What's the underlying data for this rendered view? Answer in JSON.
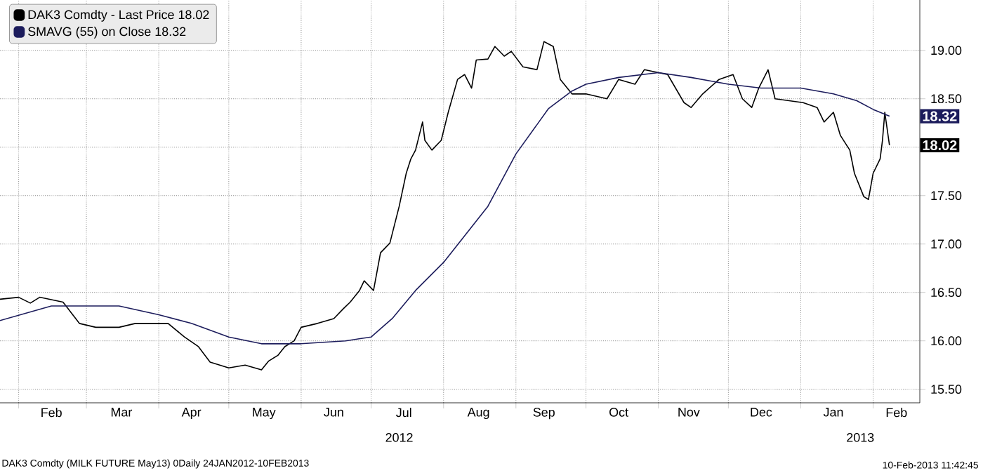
{
  "chart_data": {
    "type": "line",
    "legend": "top left",
    "grid": true,
    "xlim": [
      "2012-01-24",
      "2013-02-21"
    ],
    "ylim": [
      15.36,
      19.52
    ],
    "yticks": [
      {
        "value": 15.5,
        "label": "15.50"
      },
      {
        "value": 16,
        "label": "16.00"
      },
      {
        "value": 16.5,
        "label": "16.50"
      },
      {
        "value": 17,
        "label": "17.00"
      },
      {
        "value": 17.5,
        "label": "17.50"
      },
      {
        "value": 18,
        "label": null
      },
      {
        "value": 18.5,
        "label": "18.50"
      },
      {
        "value": 19,
        "label": "19.00"
      }
    ],
    "xticks": [
      {
        "value": "2012-02-01",
        "label": null
      },
      {
        "value": "2012-03-01",
        "label": null
      },
      {
        "value": "2012-04-01",
        "label": null
      },
      {
        "value": "2012-05-01",
        "label": null
      },
      {
        "value": "2012-06-01",
        "label": null
      },
      {
        "value": "2012-07-01",
        "label": null
      },
      {
        "value": "2012-08-01",
        "label": null
      },
      {
        "value": "2012-09-01",
        "label": null
      },
      {
        "value": "2012-10-01",
        "label": null
      },
      {
        "value": "2012-11-01",
        "label": null
      },
      {
        "value": "2012-12-01",
        "label": null
      },
      {
        "value": "2013-01-01",
        "label": null
      },
      {
        "value": "2013-02-01",
        "label": null
      },
      {
        "value": "2012-02-15",
        "label": "Feb"
      },
      {
        "value": "2012-03-16",
        "label": "Mar"
      },
      {
        "value": "2012-04-15",
        "label": "Apr"
      },
      {
        "value": "2012-05-16",
        "label": "May"
      },
      {
        "value": "2012-06-15",
        "label": "Jun"
      },
      {
        "value": "2012-07-15",
        "label": "Jul"
      },
      {
        "value": "2012-08-16",
        "label": "Aug"
      },
      {
        "value": "2012-09-13",
        "label": "Sep"
      },
      {
        "value": "2012-10-15",
        "label": "Oct"
      },
      {
        "value": "2012-11-14",
        "label": "Nov"
      },
      {
        "value": "2012-12-15",
        "label": "Dec"
      },
      {
        "value": "2013-01-15",
        "label": "Jan"
      },
      {
        "value": "2013-02-11",
        "label": "Feb"
      }
    ],
    "series": [
      {
        "name": "DAK3 Comdty - Last Price 18.02",
        "color": "#000000",
        "x": [
          "2012-01-24",
          "2012-02-01",
          "2012-02-06",
          "2012-02-10",
          "2012-02-20",
          "2012-02-27",
          "2012-03-05",
          "2012-03-15",
          "2012-03-22",
          "2012-04-05",
          "2012-04-12",
          "2012-04-18",
          "2012-04-23",
          "2012-05-01",
          "2012-05-08",
          "2012-05-15",
          "2012-05-18",
          "2012-05-22",
          "2012-05-25",
          "2012-05-29",
          "2012-06-01",
          "2012-06-08",
          "2012-06-15",
          "2012-06-19",
          "2012-06-22",
          "2012-06-26",
          "2012-06-28",
          "2012-07-02",
          "2012-07-05",
          "2012-07-09",
          "2012-07-11",
          "2012-07-13",
          "2012-07-16",
          "2012-07-18",
          "2012-07-20",
          "2012-07-23",
          "2012-07-24",
          "2012-07-27",
          "2012-07-31",
          "2012-08-03",
          "2012-08-07",
          "2012-08-10",
          "2012-08-13",
          "2012-08-15",
          "2012-08-20",
          "2012-08-23",
          "2012-08-27",
          "2012-08-30",
          "2012-09-04",
          "2012-09-10",
          "2012-09-13",
          "2012-09-17",
          "2012-09-20",
          "2012-09-25",
          "2012-10-01",
          "2012-10-10",
          "2012-10-15",
          "2012-10-22",
          "2012-10-26",
          "2012-11-05",
          "2012-11-12",
          "2012-11-15",
          "2012-11-20",
          "2012-11-27",
          "2012-12-03",
          "2012-12-07",
          "2012-12-11",
          "2012-12-14",
          "2012-12-18",
          "2012-12-21",
          "2013-01-02",
          "2013-01-08",
          "2013-01-11",
          "2013-01-15",
          "2013-01-18",
          "2013-01-22",
          "2013-01-24",
          "2013-01-28",
          "2013-01-30",
          "2013-02-01",
          "2013-02-04",
          "2013-02-05",
          "2013-02-06",
          "2013-02-08"
        ],
        "values": [
          16.43,
          16.45,
          16.39,
          16.45,
          16.4,
          16.18,
          16.14,
          16.14,
          16.18,
          16.18,
          16.04,
          15.94,
          15.78,
          15.72,
          15.75,
          15.7,
          15.79,
          15.85,
          15.94,
          16.0,
          16.14,
          16.18,
          16.23,
          16.33,
          16.4,
          16.52,
          16.62,
          16.52,
          16.91,
          17.01,
          17.2,
          17.39,
          17.73,
          17.88,
          17.97,
          18.26,
          18.07,
          17.97,
          18.07,
          18.36,
          18.7,
          18.75,
          18.61,
          18.9,
          18.91,
          19.04,
          18.94,
          18.99,
          18.83,
          18.8,
          19.09,
          19.04,
          18.7,
          18.55,
          18.55,
          18.5,
          18.7,
          18.65,
          18.8,
          18.75,
          18.46,
          18.41,
          18.55,
          18.7,
          18.75,
          18.5,
          18.41,
          18.61,
          18.8,
          18.5,
          18.46,
          18.41,
          18.26,
          18.36,
          18.12,
          17.97,
          17.73,
          17.49,
          17.46,
          17.73,
          17.88,
          18.07,
          18.36,
          18.02
        ]
      },
      {
        "name": "SMAVG (55) on Close 18.32",
        "color": "#1c1c5c",
        "x": [
          "2012-01-24",
          "2012-02-15",
          "2012-03-15",
          "2012-04-01",
          "2012-04-15",
          "2012-05-01",
          "2012-05-15",
          "2012-06-01",
          "2012-06-20",
          "2012-07-01",
          "2012-07-10",
          "2012-07-20",
          "2012-08-01",
          "2012-08-20",
          "2012-09-01",
          "2012-09-15",
          "2012-09-25",
          "2012-10-01",
          "2012-10-15",
          "2012-11-01",
          "2012-11-15",
          "2012-12-01",
          "2012-12-15",
          "2013-01-01",
          "2013-01-15",
          "2013-01-25",
          "2013-02-01",
          "2013-02-08"
        ],
        "values": [
          16.21,
          16.36,
          16.36,
          16.27,
          16.18,
          16.04,
          15.97,
          15.97,
          16.0,
          16.04,
          16.23,
          16.52,
          16.81,
          17.39,
          17.93,
          18.4,
          18.58,
          18.65,
          18.72,
          18.77,
          18.72,
          18.65,
          18.61,
          18.61,
          18.55,
          18.48,
          18.39,
          18.32
        ]
      }
    ],
    "annotations": [
      "2012",
      "2013",
      {
        "text": "18.32",
        "x": "2013-02-08",
        "y": 18.32
      },
      {
        "text": "18.02",
        "x": "2013-02-08",
        "y": 18.02
      },
      "DAK3 Comdty (MILK FUTURE      May13) 0Daily 24JAN2012-10FEB2013",
      "10-Feb-2013 11:42:45"
    ]
  }
}
